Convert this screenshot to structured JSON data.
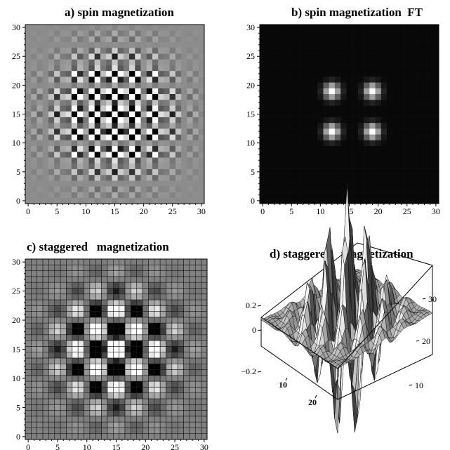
{
  "chart_data": [
    {
      "type": "heatmap",
      "title": "a) spin magnetization",
      "xlabel": "",
      "ylabel": "",
      "xlim": [
        0,
        30
      ],
      "ylim": [
        0,
        30
      ],
      "x_ticks": [
        0,
        5,
        10,
        15,
        20,
        25,
        30
      ],
      "y_ticks": [
        0,
        5,
        10,
        15,
        20,
        25,
        30
      ],
      "grid_size": 31,
      "colormap": "grayscale",
      "pattern": "checkerboard (alternating-sign spin magnetization) with amplitude envelope peaked at (15,15), radius ~11, modulated by the staggered pattern; background mid-gray"
    },
    {
      "type": "heatmap",
      "title": "b) spin magnetization  FT",
      "xlabel": "",
      "ylabel": "",
      "xlim": [
        0,
        30
      ],
      "ylim": [
        0,
        30
      ],
      "x_ticks": [
        0,
        5,
        10,
        15,
        20,
        25,
        30
      ],
      "y_ticks": [
        0,
        5,
        10,
        15,
        20,
        25,
        30
      ],
      "grid_size": 31,
      "colormap": "grayscale",
      "background": "black",
      "peaks": [
        {
          "x": 12,
          "y": 12
        },
        {
          "x": 19,
          "y": 12
        },
        {
          "x": 12,
          "y": 19
        },
        {
          "x": 19,
          "y": 19
        }
      ]
    },
    {
      "type": "heatmap",
      "title": "c) staggered   magnetization",
      "xlabel": "",
      "ylabel": "",
      "xlim": [
        0,
        30
      ],
      "ylim": [
        0,
        30
      ],
      "x_ticks": [
        0,
        5,
        10,
        15,
        20,
        25,
        30
      ],
      "y_ticks": [
        0,
        5,
        10,
        15,
        20,
        25,
        30
      ],
      "grid_size": 31,
      "mesh_lines": true,
      "colormap": "grayscale",
      "pattern": "smooth staggered magnetization, wavevector ~0.9 along x and y, envelope centered at (15,15), background mid-gray"
    },
    {
      "type": "surface3d",
      "title": "d) staggered   magnetization",
      "z_ticks": [
        -0.2,
        0,
        0.2
      ],
      "z_tick_labels": [
        "−0.2",
        "0",
        "0.2"
      ],
      "x_ticks": [
        10,
        20
      ],
      "y_ticks": [
        10,
        20,
        30
      ],
      "grid_size": 31,
      "surface": "same field as panel c) shown as 3D mesh surface"
    }
  ]
}
